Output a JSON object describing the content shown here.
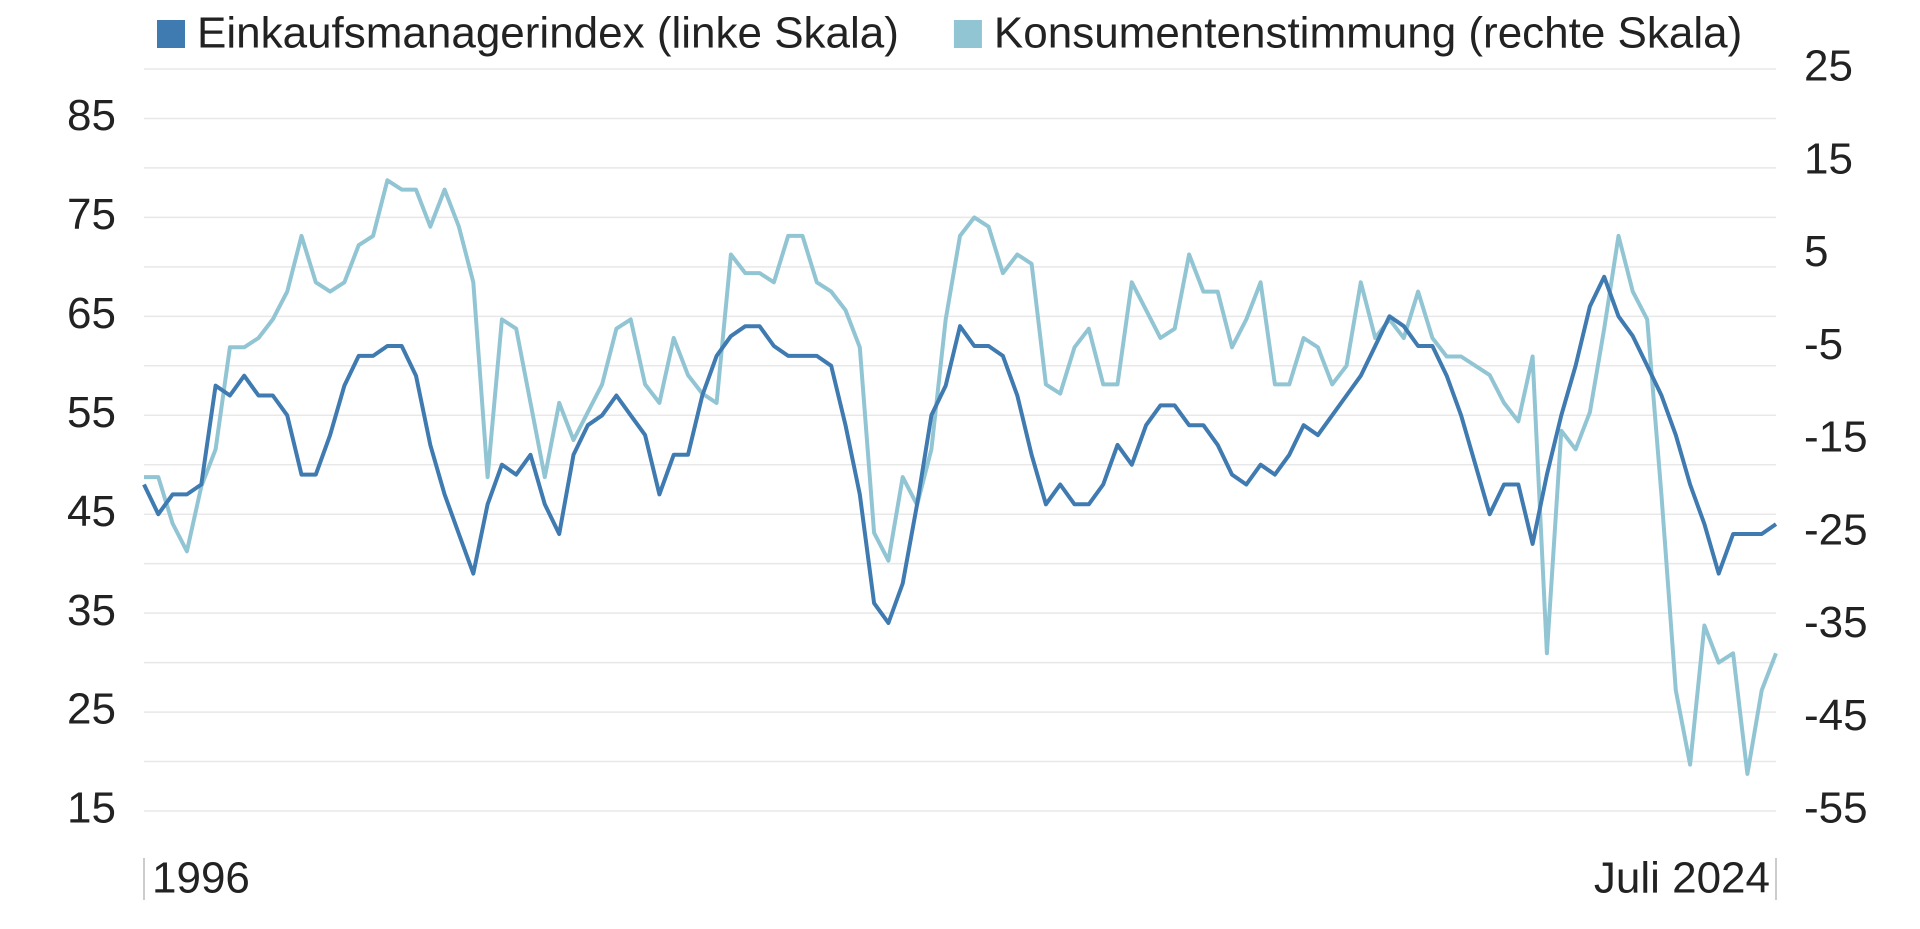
{
  "chart_data": {
    "type": "line",
    "legend": "top",
    "grid": true,
    "categories": [
      "1996",
      null,
      null,
      null,
      null,
      null,
      null,
      null,
      null,
      null,
      null,
      null,
      null,
      null,
      null,
      null,
      null,
      null,
      null,
      null,
      null,
      null,
      null,
      null,
      null,
      null,
      null,
      null,
      null,
      null,
      null,
      null,
      null,
      null,
      null,
      null,
      null,
      null,
      null,
      null,
      null,
      null,
      null,
      null,
      null,
      null,
      null,
      null,
      null,
      null,
      null,
      null,
      null,
      null,
      null,
      null,
      null,
      null,
      null,
      null,
      null,
      null,
      null,
      null,
      null,
      null,
      null,
      null,
      null,
      null,
      null,
      null,
      null,
      null,
      null,
      null,
      null,
      null,
      null,
      null,
      null,
      null,
      null,
      null,
      null,
      null,
      null,
      null,
      null,
      null,
      null,
      null,
      null,
      null,
      null,
      null,
      null,
      null,
      null,
      null,
      null,
      null,
      null,
      null,
      null,
      null,
      null,
      null,
      null,
      null,
      null,
      null,
      null,
      null,
      "Juli 2024"
    ],
    "ylim": [
      15,
      90
    ],
    "yticks": [
      15,
      25,
      35,
      45,
      55,
      65,
      75,
      85
    ],
    "ygrid": [
      15,
      20,
      25,
      30,
      35,
      40,
      45,
      50,
      55,
      60,
      65,
      70,
      75,
      80,
      85,
      90
    ],
    "y2lim": [
      -55,
      25
    ],
    "y2ticks": [
      -55,
      -45,
      -35,
      -25,
      -15,
      -5,
      5,
      15,
      25
    ],
    "series": [
      {
        "name": "Einkaufsmanagerindex (linke Skala)",
        "color": "#3f7bb0",
        "values": [
          48,
          45,
          47,
          47,
          48,
          58,
          57,
          59,
          57,
          57,
          55,
          49,
          49,
          53,
          58,
          61,
          61,
          62,
          62,
          59,
          52,
          47,
          43,
          39,
          46,
          50,
          49,
          51,
          46,
          43,
          51,
          54,
          55,
          57,
          55,
          53,
          47,
          51,
          51,
          57,
          61,
          63,
          64,
          64,
          62,
          61,
          61,
          61,
          60,
          54,
          47,
          36,
          34,
          38,
          46,
          55,
          58,
          64,
          62,
          62,
          61,
          57,
          51,
          46,
          48,
          46,
          46,
          48,
          52,
          50,
          54,
          56,
          56,
          54,
          54,
          52,
          49,
          48,
          50,
          49,
          51,
          54,
          53,
          55,
          57,
          59,
          62,
          65,
          64,
          62,
          62,
          59,
          55,
          50,
          45,
          48,
          48,
          42,
          49,
          55,
          60,
          66,
          69,
          65,
          63,
          60,
          57,
          53,
          48,
          44,
          39,
          43,
          43,
          43,
          44
        ]
      },
      {
        "name": "Konsumentenstimmung (rechte Skala)",
        "color": "#92c5d3",
        "axis": "y2",
        "values": [
          -19,
          -19,
          -24,
          -27,
          -20,
          -16,
          -5,
          -5,
          -4,
          -2,
          1,
          7,
          2,
          1,
          2,
          6,
          7,
          13,
          12,
          12,
          8,
          12,
          8,
          2,
          -19,
          -2,
          -3,
          -11,
          -19,
          -11,
          -15,
          -12,
          -9,
          -3,
          -2,
          -9,
          -11,
          -4,
          -8,
          -10,
          -11,
          5,
          3,
          3,
          2,
          7,
          7,
          2,
          1,
          -1,
          -5,
          -25,
          -28,
          -19,
          -22,
          -16,
          -2,
          7,
          9,
          8,
          3,
          5,
          4,
          -9,
          -10,
          -5,
          -3,
          -9,
          -9,
          2,
          -1,
          -4,
          -3,
          5,
          1,
          1,
          -5,
          -2,
          2,
          -9,
          -9,
          -4,
          -5,
          -9,
          -7,
          2,
          -4,
          -2,
          -4,
          1,
          -4,
          -6,
          -6,
          -7,
          -8,
          -11,
          -13,
          -6,
          -38,
          -14,
          -16,
          -12,
          -3,
          7,
          1,
          -2,
          -21,
          -42,
          -50,
          -35,
          -39,
          -38,
          -51,
          -42,
          -38
        ]
      }
    ]
  }
}
